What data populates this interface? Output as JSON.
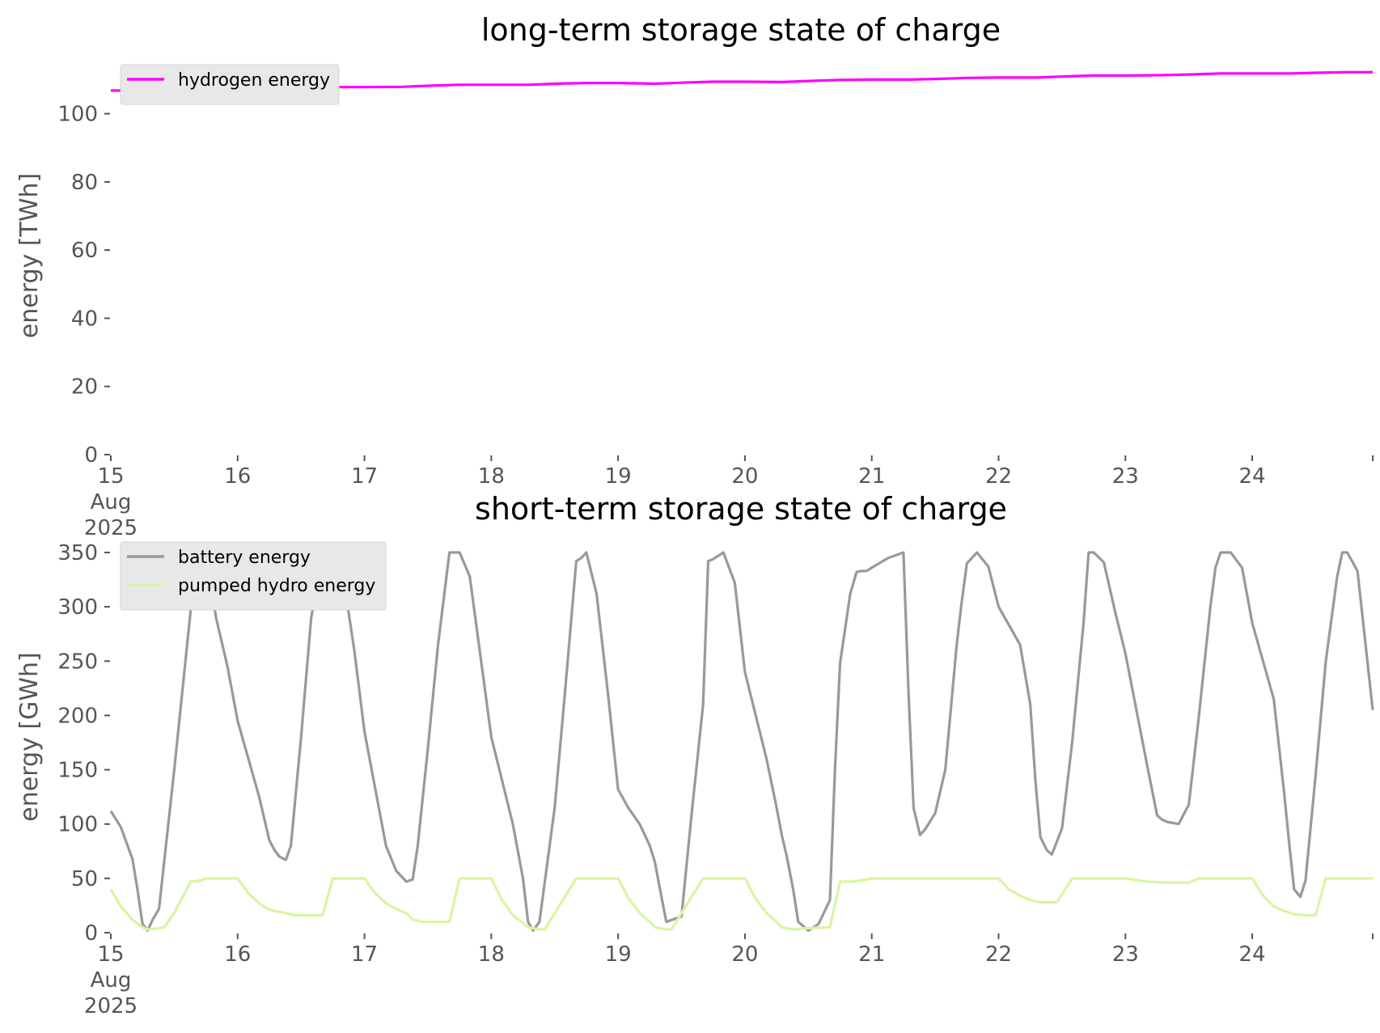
{
  "chart_data": [
    {
      "type": "line",
      "title": "long-term storage state of charge",
      "xlabel": "",
      "ylabel": "energy [TWh]",
      "ylim": [
        0,
        112
      ],
      "yticks": [
        0,
        20,
        40,
        60,
        80,
        100
      ],
      "xlim": [
        15,
        24.95
      ],
      "xticks": [
        {
          "value": 15,
          "label": "15",
          "sub": [
            "Aug",
            "2025"
          ]
        },
        {
          "value": 16,
          "label": "16"
        },
        {
          "value": 17,
          "label": "17"
        },
        {
          "value": 18,
          "label": "18"
        },
        {
          "value": 19,
          "label": "19"
        },
        {
          "value": 20,
          "label": "20"
        },
        {
          "value": 21,
          "label": "21"
        },
        {
          "value": 22,
          "label": "22"
        },
        {
          "value": 23,
          "label": "23"
        },
        {
          "value": 24,
          "label": "24"
        }
      ],
      "grid": false,
      "legend_position": "top-left",
      "series": [
        {
          "name": "hydrogen energy",
          "color": "#ff00ff",
          "x": [
            15.0,
            15.25,
            15.5,
            15.75,
            16.0,
            16.3,
            16.5,
            16.75,
            17.0,
            17.3,
            17.5,
            17.75,
            18.0,
            18.3,
            18.5,
            18.75,
            19.0,
            19.3,
            19.5,
            19.75,
            20.0,
            20.3,
            20.5,
            20.75,
            21.0,
            21.3,
            21.5,
            21.75,
            22.0,
            22.3,
            22.5,
            22.75,
            23.0,
            23.3,
            23.5,
            23.75,
            24.0,
            24.3,
            24.5,
            24.75,
            24.95
          ],
          "y": [
            106.8,
            106.7,
            106.9,
            107.2,
            107.3,
            107.3,
            107.6,
            107.8,
            107.8,
            107.9,
            108.2,
            108.5,
            108.5,
            108.5,
            108.8,
            109.0,
            109.0,
            108.8,
            109.1,
            109.4,
            109.4,
            109.3,
            109.6,
            109.9,
            110.0,
            110.0,
            110.2,
            110.5,
            110.6,
            110.6,
            110.9,
            111.2,
            111.2,
            111.3,
            111.5,
            111.8,
            111.8,
            111.8,
            112.0,
            112.2,
            112.2
          ]
        }
      ]
    },
    {
      "type": "line",
      "title": "short-term storage state of charge",
      "xlabel": "",
      "ylabel": "energy [GWh]",
      "ylim": [
        0,
        350
      ],
      "yticks": [
        0,
        50,
        100,
        150,
        200,
        250,
        300,
        350
      ],
      "xlim": [
        15,
        24.95
      ],
      "xticks": [
        {
          "value": 15,
          "label": "15",
          "sub": [
            "Aug",
            "2025"
          ]
        },
        {
          "value": 16,
          "label": "16"
        },
        {
          "value": 17,
          "label": "17"
        },
        {
          "value": 18,
          "label": "18"
        },
        {
          "value": 19,
          "label": "19"
        },
        {
          "value": 20,
          "label": "20"
        },
        {
          "value": 21,
          "label": "21"
        },
        {
          "value": 22,
          "label": "22"
        },
        {
          "value": 23,
          "label": "23"
        },
        {
          "value": 24,
          "label": "24"
        }
      ],
      "grid": false,
      "legend_position": "top-left",
      "series": [
        {
          "name": "battery energy",
          "color": "#999999",
          "x": [
            15.0,
            15.08,
            15.12,
            15.17,
            15.21,
            15.25,
            15.29,
            15.33,
            15.38,
            15.5,
            15.67,
            15.71,
            15.75,
            15.83,
            15.92,
            16.0,
            16.17,
            16.25,
            16.29,
            16.33,
            16.38,
            16.42,
            16.5,
            16.58,
            16.67,
            16.71,
            16.75,
            16.83,
            16.92,
            17.0,
            17.17,
            17.25,
            17.33,
            17.38,
            17.42,
            17.5,
            17.58,
            17.67,
            17.71,
            17.75,
            17.83,
            17.92,
            18.0,
            18.17,
            18.25,
            18.29,
            18.33,
            18.38,
            18.5,
            18.58,
            18.67,
            18.71,
            18.75,
            18.83,
            18.92,
            19.0,
            19.08,
            19.17,
            19.21,
            19.25,
            19.29,
            19.33,
            19.38,
            19.5,
            19.58,
            19.67,
            19.71,
            19.75,
            19.83,
            19.92,
            20.0,
            20.17,
            20.25,
            20.29,
            20.33,
            20.38,
            20.42,
            20.5,
            20.58,
            20.67,
            20.71,
            20.75,
            20.83,
            20.88,
            20.92,
            20.96,
            21.0,
            21.13,
            21.25,
            21.29,
            21.33,
            21.38,
            21.42,
            21.5,
            21.58,
            21.67,
            21.71,
            21.75,
            21.83,
            21.92,
            22.0,
            22.17,
            22.25,
            22.29,
            22.33,
            22.38,
            22.42,
            22.5,
            22.58,
            22.67,
            22.71,
            22.75,
            22.83,
            22.92,
            23.0,
            23.17,
            23.25,
            23.29,
            23.33,
            23.42,
            23.5,
            23.58,
            23.67,
            23.71,
            23.75,
            23.83,
            23.92,
            24.0,
            24.17,
            24.25,
            24.29,
            24.33,
            24.38,
            24.42,
            24.5,
            24.58,
            24.67,
            24.71,
            24.75,
            24.83,
            24.95
          ],
          "y": [
            112,
            97,
            84,
            68,
            40,
            8,
            2,
            12,
            22,
            150,
            342,
            350,
            350,
            290,
            245,
            195,
            125,
            85,
            76,
            70,
            67,
            80,
            180,
            290,
            348,
            350,
            350,
            330,
            260,
            185,
            80,
            57,
            47,
            49,
            80,
            170,
            265,
            350,
            350,
            350,
            328,
            250,
            180,
            100,
            50,
            10,
            2,
            10,
            115,
            220,
            342,
            345,
            350,
            312,
            220,
            132,
            115,
            100,
            90,
            80,
            65,
            40,
            10,
            15,
            110,
            210,
            342,
            344,
            350,
            322,
            240,
            160,
            115,
            90,
            70,
            40,
            10,
            2,
            8,
            30,
            150,
            248,
            312,
            332,
            333,
            333,
            336,
            345,
            350,
            220,
            115,
            90,
            95,
            110,
            150,
            265,
            305,
            340,
            350,
            337,
            300,
            265,
            210,
            140,
            88,
            76,
            72,
            96,
            175,
            285,
            350,
            350,
            341,
            295,
            257,
            155,
            108,
            104,
            102,
            100,
            118,
            200,
            300,
            336,
            350,
            350,
            336,
            285,
            215,
            130,
            84,
            40,
            33,
            48,
            145,
            250,
            328,
            350,
            350,
            333,
            205
          ]
        },
        {
          "name": "pumped hydro energy",
          "color": "#d8f5a2",
          "x": [
            15.0,
            15.08,
            15.17,
            15.25,
            15.29,
            15.38,
            15.42,
            15.5,
            15.63,
            15.71,
            15.75,
            15.92,
            16.0,
            16.08,
            16.17,
            16.25,
            16.38,
            16.46,
            16.67,
            16.75,
            16.92,
            17.0,
            17.08,
            17.17,
            17.25,
            17.33,
            17.38,
            17.46,
            17.67,
            17.75,
            17.92,
            18.0,
            18.08,
            18.17,
            18.25,
            18.29,
            18.38,
            18.42,
            18.67,
            18.75,
            18.92,
            19.0,
            19.08,
            19.17,
            19.25,
            19.29,
            19.38,
            19.42,
            19.67,
            19.75,
            19.92,
            20.0,
            20.08,
            20.17,
            20.25,
            20.29,
            20.38,
            20.46,
            20.67,
            20.75,
            20.83,
            20.92,
            21.0,
            21.92,
            22.0,
            22.08,
            22.17,
            22.25,
            22.33,
            22.46,
            22.58,
            22.67,
            22.92,
            23.0,
            23.17,
            23.33,
            23.42,
            23.5,
            23.58,
            23.67,
            23.92,
            24.0,
            24.08,
            24.17,
            24.25,
            24.33,
            24.42,
            24.5,
            24.58,
            24.67,
            24.95
          ],
          "y": [
            40,
            24,
            12,
            5,
            3,
            4,
            5,
            18,
            47,
            48,
            50,
            50,
            50,
            37,
            27,
            21,
            18,
            16,
            16,
            50,
            50,
            50,
            37,
            27,
            22,
            18,
            12,
            10,
            10,
            50,
            50,
            50,
            31,
            16,
            9,
            5,
            3,
            3,
            50,
            50,
            50,
            50,
            32,
            18,
            10,
            5,
            3,
            3,
            50,
            50,
            50,
            50,
            32,
            18,
            10,
            5,
            3,
            4,
            5,
            47,
            47,
            48,
            50,
            50,
            50,
            40,
            34,
            30,
            28,
            28,
            50,
            50,
            50,
            50,
            47,
            46,
            46,
            46,
            50,
            50,
            50,
            50,
            35,
            24,
            20,
            17,
            16,
            16,
            50,
            50,
            50
          ]
        }
      ]
    }
  ]
}
